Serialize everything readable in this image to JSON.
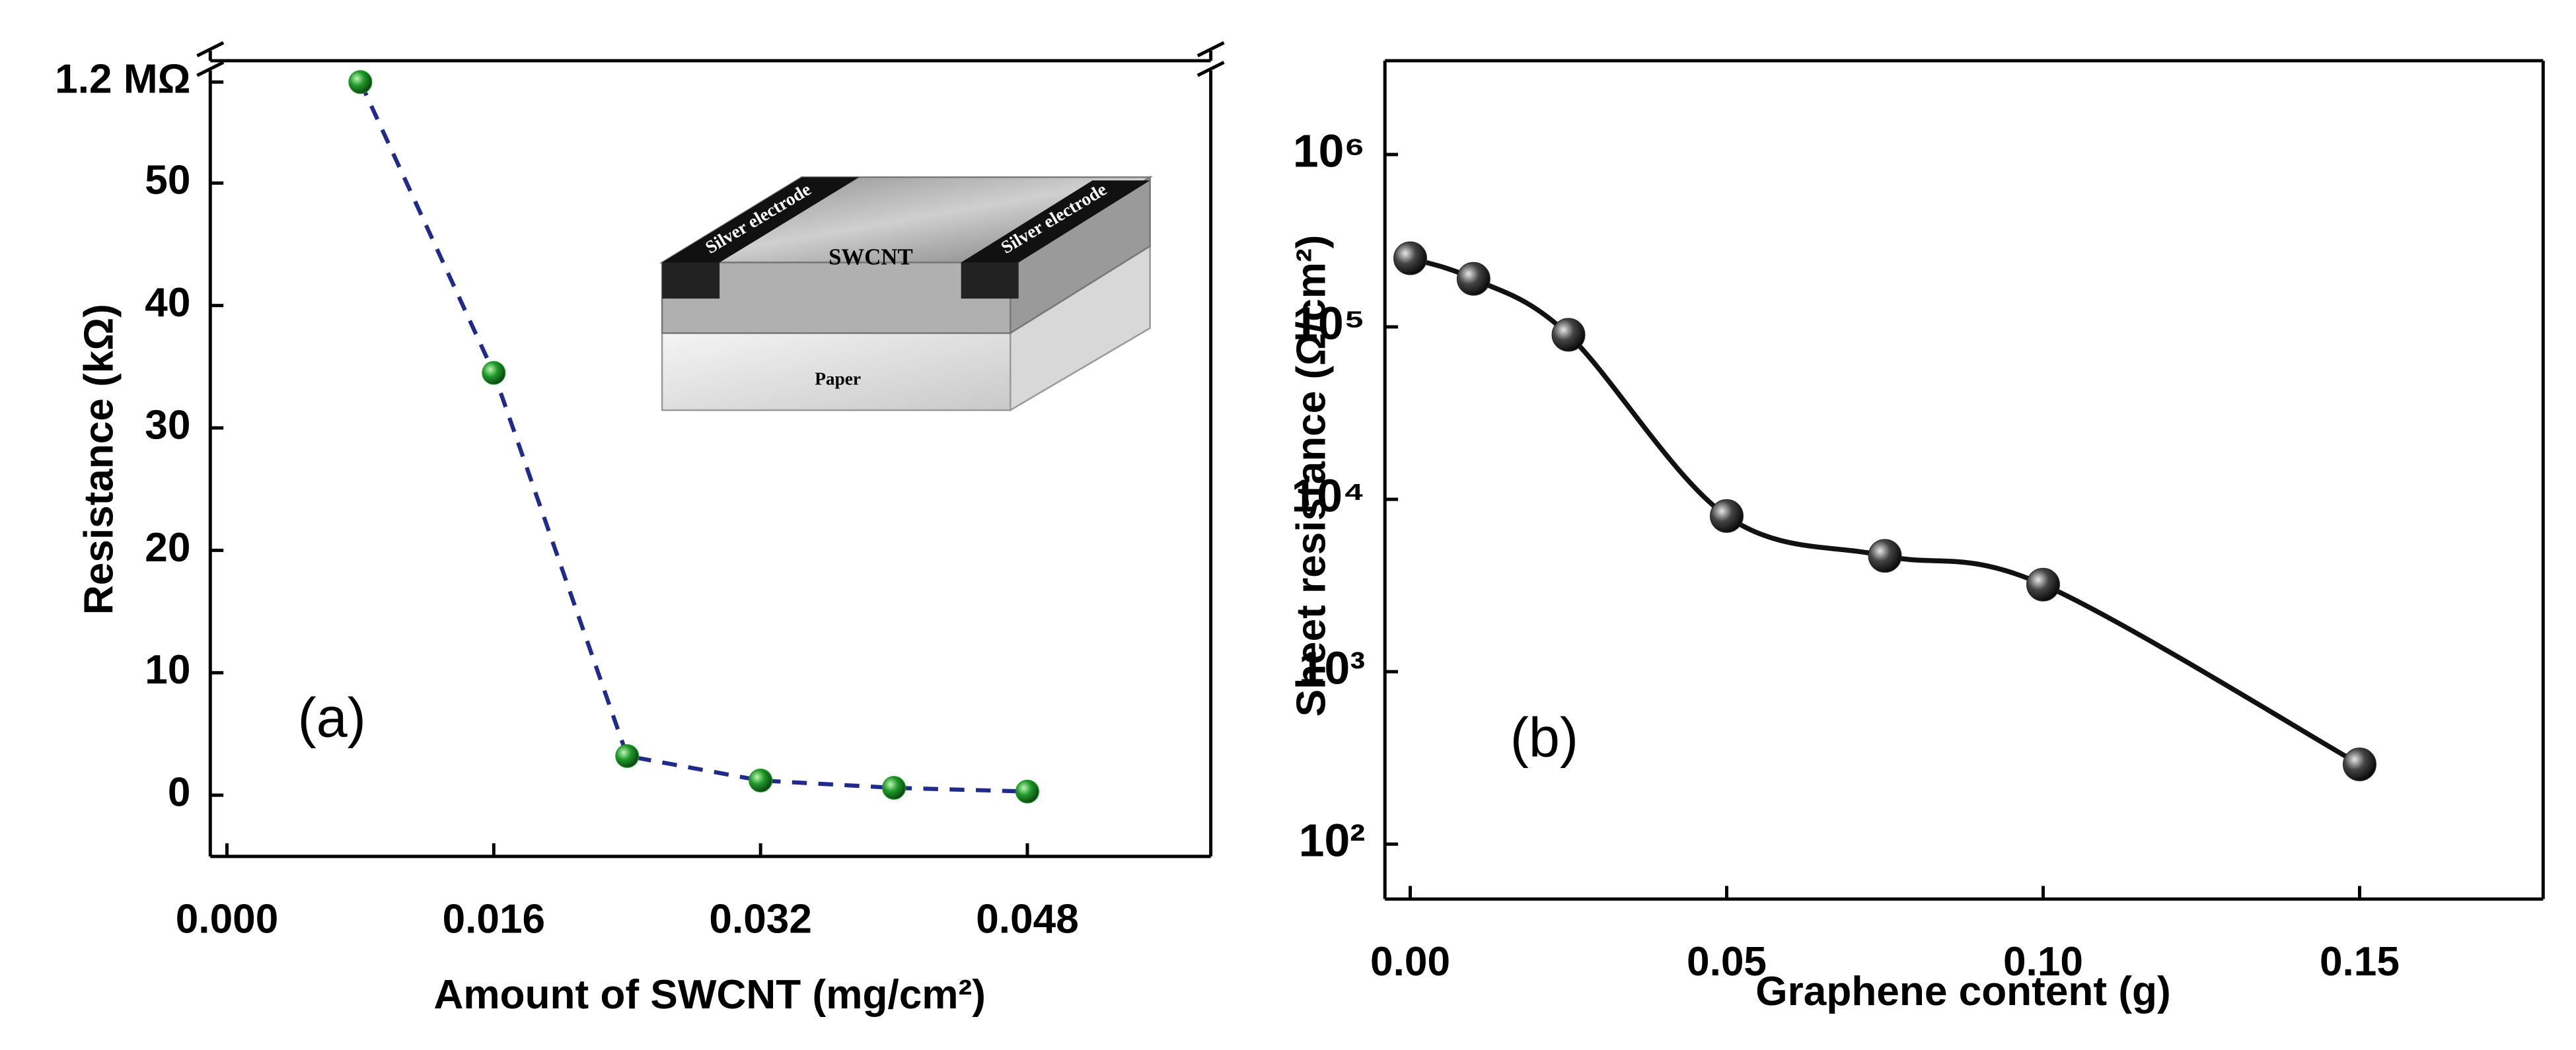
{
  "chart_data": [
    {
      "type": "line",
      "x_label": "Amount of SWCNT (mg/cm²)",
      "y_label": "Resistance (kΩ)",
      "annotation": "(a)",
      "inset_labels": [
        "Silver electrode",
        "SWCNT",
        "Silver electrode",
        "Paper"
      ],
      "x": [
        0.008,
        0.016,
        0.024,
        0.032,
        0.04,
        0.048
      ],
      "series": [
        {
          "color": "#1f9a2a",
          "line_color": "#1f2a8a",
          "line_style": "dashed",
          "values": [
            1200,
            34.5,
            3.2,
            1.2,
            0.6,
            0.3
          ]
        }
      ],
      "xlim": [
        -0.001,
        0.059
      ],
      "xticks": [
        {
          "value": 0,
          "label": "0.000"
        },
        {
          "value": 0.016,
          "label": "0.016"
        },
        {
          "value": 0.032,
          "label": "0.032"
        },
        {
          "value": 0.048,
          "label": "0.048"
        }
      ],
      "ylim": [
        -5,
        60
      ],
      "yticks": [
        0,
        10,
        20,
        30,
        40,
        50,
        {
          "value": 1200,
          "label": "1.2 MΩ"
        }
      ],
      "y_break": true
    },
    {
      "type": "line",
      "x_label": "Graphene content (g)",
      "y_label": "Sheet resistance (Ω/cm²)",
      "annotation": "(b)",
      "x": [
        0,
        0.01,
        0.025,
        0.05,
        0.075,
        0.1,
        0.15
      ],
      "series": [
        {
          "color": "#2a2a2a",
          "line_color": "#111111",
          "line_style": "solid",
          "values": [
            250000,
            190000,
            90000,
            8000,
            4700,
            3200,
            290
          ]
        }
      ],
      "xlim": [
        -0.004,
        0.179
      ],
      "xticks": [
        {
          "value": 0,
          "label": "0.00"
        },
        {
          "value": 0.05,
          "label": "0.05"
        },
        {
          "value": 0.1,
          "label": "0.10"
        },
        {
          "value": 0.15,
          "label": "0.15"
        }
      ],
      "ylim": [
        48,
        3500000
      ],
      "ylog": true,
      "smooth": true,
      "yticks": [
        {
          "value": 100,
          "label": "10²"
        },
        {
          "value": 1000,
          "label": "10³"
        },
        {
          "value": 10000,
          "label": "10⁴"
        },
        {
          "value": 100000,
          "label": "10⁵"
        },
        {
          "value": 1000000,
          "label": "10⁶"
        }
      ]
    }
  ]
}
